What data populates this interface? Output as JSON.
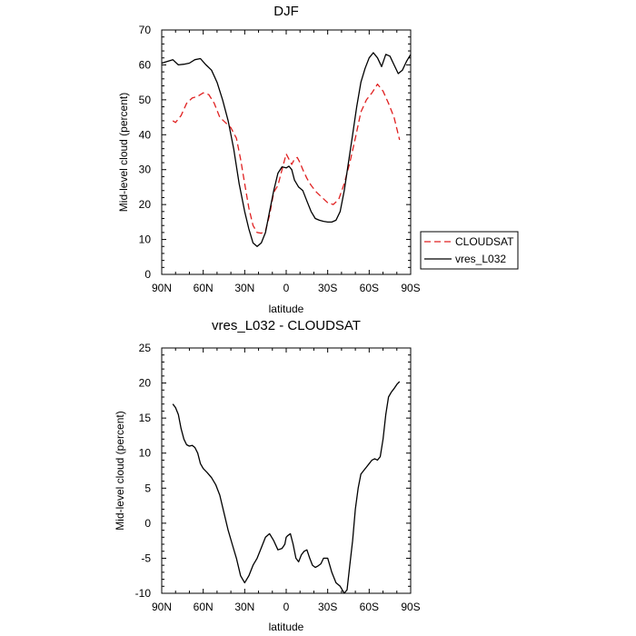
{
  "chart_data": [
    {
      "type": "line",
      "title": "DJF",
      "xlabel": "latitude",
      "ylabel": "Mid-level cloud (percent)",
      "xlim": [
        -90,
        90
      ],
      "ylim": [
        0,
        70
      ],
      "xticks": [
        -90,
        -60,
        -30,
        0,
        30,
        60,
        90
      ],
      "xtick_labels": [
        "90N",
        "60N",
        "30N",
        "0",
        "30S",
        "60S",
        "90S"
      ],
      "yticks": [
        0,
        10,
        20,
        30,
        40,
        50,
        60,
        70
      ],
      "grid": false,
      "legend_position": "right-center",
      "series": [
        {
          "name": "CLOUDSAT",
          "color": "#e02020",
          "dash": "dashed",
          "x": [
            -82,
            -80,
            -76,
            -72,
            -68,
            -64,
            -60,
            -56,
            -52,
            -48,
            -44,
            -40,
            -36,
            -33,
            -30,
            -27,
            -24,
            -21,
            -18,
            -15,
            -12,
            -9,
            -6,
            -3,
            0,
            2,
            4,
            6,
            8,
            10,
            12,
            15,
            18,
            22,
            26,
            30,
            34,
            38,
            42,
            46,
            50,
            54,
            58,
            62,
            66,
            70,
            74,
            78,
            82
          ],
          "y": [
            44,
            43.5,
            45.5,
            49,
            50.5,
            51,
            52,
            51.5,
            49,
            45,
            43.5,
            42,
            39,
            33,
            26,
            19,
            14,
            12,
            11.8,
            12.5,
            17,
            23.5,
            25.5,
            30,
            34.5,
            33,
            31.5,
            33,
            33.5,
            32,
            30,
            27.5,
            25.5,
            23.5,
            22,
            20.5,
            20,
            21.5,
            26,
            32,
            39,
            46.5,
            50,
            52,
            54.5,
            52.5,
            49,
            45,
            38.5
          ]
        },
        {
          "name": "vres_L032",
          "color": "#000000",
          "dash": "solid",
          "x": [
            -90,
            -86,
            -82,
            -78,
            -74,
            -70,
            -66,
            -62,
            -58,
            -54,
            -50,
            -46,
            -42,
            -38,
            -34,
            -30,
            -27,
            -24,
            -21,
            -18,
            -15,
            -12,
            -9,
            -6,
            -3,
            0,
            2,
            4,
            6,
            9,
            12,
            15,
            18,
            21,
            24,
            27,
            30,
            33,
            36,
            39,
            42,
            45,
            48,
            51,
            54,
            57,
            60,
            63,
            66,
            69,
            72,
            75,
            78,
            81,
            84,
            87,
            90
          ],
          "y": [
            60.5,
            61,
            61.5,
            60,
            60.2,
            60.5,
            61.5,
            61.8,
            60,
            58.5,
            55,
            50,
            44,
            36,
            26,
            18,
            13,
            9,
            8,
            9,
            12,
            18,
            24,
            29,
            30.8,
            30.5,
            31,
            30,
            27,
            25,
            24,
            21,
            18,
            16,
            15.5,
            15.2,
            15,
            15,
            15.5,
            18,
            24,
            32,
            40,
            48,
            55,
            59,
            62,
            63.5,
            62,
            59.5,
            63,
            62.5,
            60,
            57.5,
            58.5,
            61,
            63
          ]
        }
      ]
    },
    {
      "type": "line",
      "title": "vres_L032 - CLOUDSAT",
      "xlabel": "latitude",
      "ylabel": "Mid-level cloud (percent)",
      "xlim": [
        -90,
        90
      ],
      "ylim": [
        -10,
        25
      ],
      "xticks": [
        -90,
        -60,
        -30,
        0,
        30,
        60,
        90
      ],
      "xtick_labels": [
        "90N",
        "60N",
        "30N",
        "0",
        "30S",
        "60S",
        "90S"
      ],
      "yticks": [
        -10,
        -5,
        0,
        5,
        10,
        15,
        20,
        25
      ],
      "grid": false,
      "series": [
        {
          "name": "vres_L032 - CLOUDSAT",
          "color": "#000000",
          "dash": "solid",
          "x": [
            -82,
            -80,
            -78,
            -76,
            -74,
            -72,
            -70,
            -68,
            -66,
            -64,
            -62,
            -60,
            -57,
            -54,
            -51,
            -48,
            -45,
            -42,
            -39,
            -36,
            -33,
            -30,
            -27,
            -24,
            -21,
            -18,
            -15,
            -12,
            -9,
            -6,
            -3,
            -1,
            0,
            1,
            3,
            5,
            7,
            9,
            11,
            13,
            15,
            17,
            19,
            21,
            23,
            25,
            27,
            30,
            33,
            36,
            39,
            42,
            44,
            46,
            48,
            50,
            52,
            54,
            56,
            58,
            60,
            62,
            64,
            66,
            68,
            70,
            72,
            74,
            76,
            78,
            80,
            82
          ],
          "y": [
            17,
            16.5,
            15.5,
            13.5,
            12,
            11.2,
            11,
            11.1,
            10.8,
            10,
            8.5,
            7.8,
            7.2,
            6.5,
            5.5,
            4,
            1.5,
            -1,
            -3,
            -5,
            -7.5,
            -8.5,
            -7.5,
            -6,
            -5,
            -3.5,
            -2,
            -1.5,
            -2.5,
            -3.8,
            -3.6,
            -3,
            -2,
            -1.8,
            -1.5,
            -3,
            -5,
            -5.5,
            -4.5,
            -4,
            -3.8,
            -5,
            -6,
            -6.3,
            -6.1,
            -5.8,
            -5,
            -5,
            -7,
            -8.5,
            -9,
            -10,
            -9.5,
            -6,
            -2.5,
            2,
            5,
            7,
            7.5,
            8,
            8.5,
            9,
            9.2,
            9,
            9.5,
            12,
            15.5,
            18,
            18.7,
            19.2,
            19.8,
            20.2
          ]
        }
      ]
    }
  ]
}
